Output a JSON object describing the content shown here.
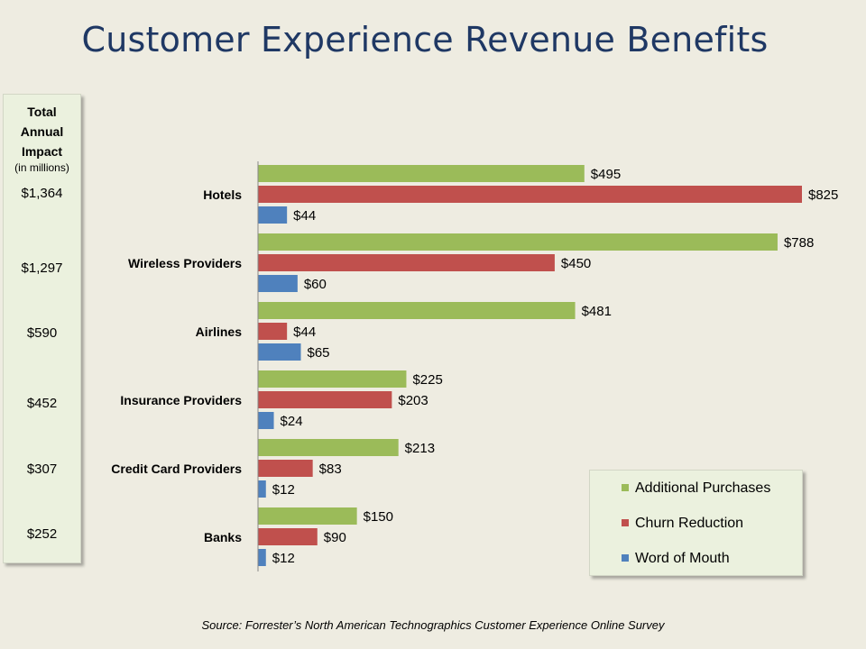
{
  "title": "Customer Experience Revenue Benefits",
  "totals": {
    "header": [
      "Total",
      "Annual",
      "Impact"
    ],
    "unit": "(in millions)",
    "values": [
      "$1,364",
      "$1,297",
      "$590",
      "$452",
      "$307",
      "$252"
    ]
  },
  "source": "Source: Forrester’s North American Technographics Customer Experience Online Survey",
  "colors": {
    "background": "#EEECE1",
    "panel": "#EBF1DE",
    "title": "#1F3864",
    "additional_purchases": "#9BBB59",
    "churn_reduction": "#C0504D",
    "word_of_mouth": "#4F81BD"
  },
  "chart_data": {
    "type": "bar",
    "orientation": "horizontal",
    "title": "Customer Experience Revenue Benefits",
    "xlabel": "",
    "ylabel": "",
    "grid": false,
    "legend_position": "bottom-right",
    "categories": [
      "Hotels",
      "Wireless Providers",
      "Airlines",
      "Insurance Providers",
      "Credit Card Providers",
      "Banks"
    ],
    "xlim": [
      0,
      825
    ],
    "series": [
      {
        "name": "Additional Purchases",
        "color": "#9BBB59",
        "values": [
          495,
          788,
          481,
          225,
          213,
          150
        ],
        "labels": [
          "$495",
          "$788",
          "$481",
          "$225",
          "$213",
          "$150"
        ]
      },
      {
        "name": "Churn Reduction",
        "color": "#C0504D",
        "values": [
          825,
          450,
          44,
          203,
          83,
          90
        ],
        "labels": [
          "$825",
          "$450",
          "$44",
          "$203",
          "$83",
          "$90"
        ]
      },
      {
        "name": "Word of Mouth",
        "color": "#4F81BD",
        "values": [
          44,
          60,
          65,
          24,
          12,
          12
        ],
        "labels": [
          "$44",
          "$60",
          "$65",
          "$24",
          "$12",
          "$12"
        ]
      }
    ]
  }
}
